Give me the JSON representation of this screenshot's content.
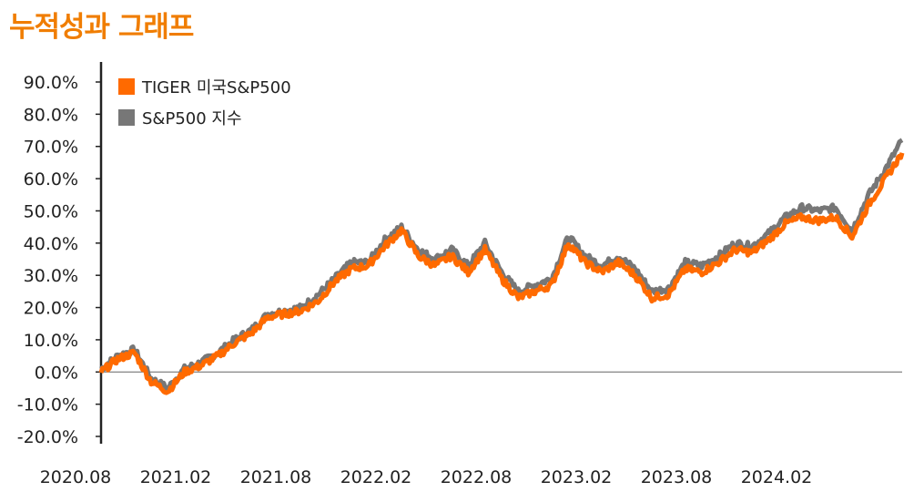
{
  "page": {
    "title": "누적성과 그래프"
  },
  "colors": {
    "tiger": "#ff6a00",
    "index": "#777777",
    "title": "#f07d00",
    "axis": "#222222",
    "zero_line": "#666666"
  },
  "chart_data": {
    "type": "line",
    "title": "",
    "xlabel": "",
    "ylabel": "",
    "legend_position": "top-left",
    "ylim": [
      -20,
      90
    ],
    "y_ticks": [
      90,
      80,
      70,
      60,
      50,
      40,
      30,
      20,
      10,
      0,
      -10,
      -20
    ],
    "y_tick_labels": [
      "90.0%",
      "80.0%",
      "70.0%",
      "60.0%",
      "50.0%",
      "40.0%",
      "30.0%",
      "20.0%",
      "10.0%",
      "0.0%",
      "-10.0%",
      "-20.0%"
    ],
    "x_tick_labels": [
      "2020.08",
      "2021.02",
      "2021.08",
      "2022.02",
      "2022.08",
      "2023.02",
      "2023.08",
      "2024.02"
    ],
    "x_ticks": [
      "2020-08",
      "2021-02",
      "2021-08",
      "2022-02",
      "2022-08",
      "2023-02",
      "2023-08",
      "2024-02"
    ],
    "xlim": [
      "2020-08",
      "2024-08"
    ],
    "grid": false,
    "series": [
      {
        "name": "TIGER 미국S&P500",
        "x": [
          "2020-08",
          "2020-09",
          "2020-10",
          "2020-11",
          "2020-12",
          "2021-01",
          "2021-02",
          "2021-03",
          "2021-04",
          "2021-05",
          "2021-06",
          "2021-07",
          "2021-08",
          "2021-09",
          "2021-10",
          "2021-11",
          "2021-12",
          "2022-01",
          "2022-02",
          "2022-03",
          "2022-04",
          "2022-05",
          "2022-06",
          "2022-07",
          "2022-08",
          "2022-09",
          "2022-10",
          "2022-11",
          "2022-12",
          "2023-01",
          "2023-02",
          "2023-03",
          "2023-04",
          "2023-05",
          "2023-06",
          "2023-07",
          "2023-08",
          "2023-09",
          "2023-10",
          "2023-11",
          "2023-12",
          "2024-01",
          "2024-02",
          "2024-03",
          "2024-04",
          "2024-05",
          "2024-06",
          "2024-07",
          "2024-08"
        ],
        "values": [
          0,
          4,
          6,
          -3,
          -6,
          0,
          2,
          5,
          9,
          12,
          17,
          18,
          19,
          22,
          28,
          32,
          33,
          39,
          44,
          36,
          33,
          36,
          31,
          38,
          29,
          23,
          25,
          27,
          40,
          34,
          31,
          34,
          30,
          23,
          24,
          32,
          31,
          34,
          38,
          37,
          41,
          46,
          48,
          47,
          48,
          42,
          52,
          60,
          68
        ]
      },
      {
        "name": "S&P500 지수",
        "x": [
          "2020-08",
          "2020-09",
          "2020-10",
          "2020-11",
          "2020-12",
          "2021-01",
          "2021-02",
          "2021-03",
          "2021-04",
          "2021-05",
          "2021-06",
          "2021-07",
          "2021-08",
          "2021-09",
          "2021-10",
          "2021-11",
          "2021-12",
          "2022-01",
          "2022-02",
          "2022-03",
          "2022-04",
          "2022-05",
          "2022-06",
          "2022-07",
          "2022-08",
          "2022-09",
          "2022-10",
          "2022-11",
          "2022-12",
          "2023-01",
          "2023-02",
          "2023-03",
          "2023-04",
          "2023-05",
          "2023-06",
          "2023-07",
          "2023-08",
          "2023-09",
          "2023-10",
          "2023-11",
          "2023-12",
          "2024-01",
          "2024-02",
          "2024-03",
          "2024-04",
          "2024-05",
          "2024-06",
          "2024-07",
          "2024-08"
        ],
        "values": [
          1,
          5,
          7,
          -2,
          -5,
          1,
          3,
          6,
          10,
          13,
          18,
          19,
          20,
          24,
          29,
          34,
          34,
          41,
          45,
          38,
          35,
          38,
          33,
          40,
          31,
          25,
          27,
          29,
          42,
          36,
          33,
          36,
          32,
          25,
          26,
          34,
          33,
          36,
          40,
          39,
          43,
          48,
          51,
          50,
          51,
          44,
          55,
          63,
          72
        ]
      }
    ]
  }
}
